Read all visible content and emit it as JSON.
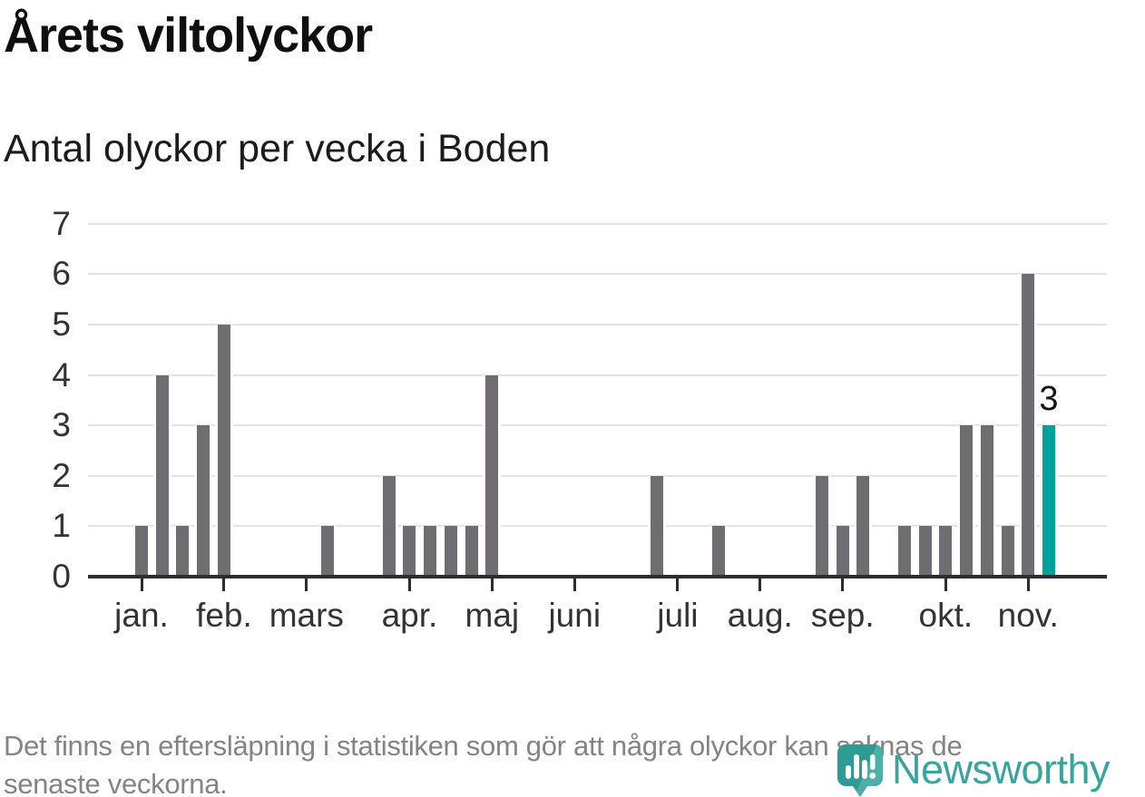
{
  "title": "Årets viltolyckor",
  "subtitle": "Antal olyckor per vecka i Boden",
  "footer": {
    "lines": [
      "Det finns en eftersläpning i statistiken som gör att några olyckor kan saknas de",
      "senaste veckorna."
    ]
  },
  "logo": {
    "wordmark": "Newsworthy"
  },
  "colors": {
    "bar": "#6f6d72",
    "highlight": "#00a39c",
    "axis": "#2d2d2d",
    "grid": "#e3e3e3",
    "tick_label": "#333333",
    "title": "#0f0f0f",
    "subtitle": "#1c1c1c",
    "footer_text": "#83838b",
    "logo_icon_dark": "#2e9b95",
    "logo_icon_light": "#4cafa8",
    "logo_wordmark": "#38a49e"
  },
  "chart_data": {
    "type": "bar",
    "title": "Årets viltolyckor",
    "subtitle": "Antal olyckor per vecka i Boden",
    "xlabel": "",
    "ylabel": "",
    "ylim": [
      0,
      7
    ],
    "yticks": [
      0,
      1,
      2,
      3,
      4,
      5,
      6,
      7
    ],
    "grid": true,
    "legend": "none",
    "x_unit": "week of year (0 = first week shown, one bar per week)",
    "month_ticks": [
      {
        "label": "jan.",
        "week": 0
      },
      {
        "label": "feb.",
        "week": 4
      },
      {
        "label": "mars",
        "week": 8
      },
      {
        "label": "apr.",
        "week": 13
      },
      {
        "label": "maj",
        "week": 17
      },
      {
        "label": "juni",
        "week": 21
      },
      {
        "label": "juli",
        "week": 26
      },
      {
        "label": "aug.",
        "week": 30
      },
      {
        "label": "sep.",
        "week": 34
      },
      {
        "label": "okt.",
        "week": 39
      },
      {
        "label": "nov.",
        "week": 43
      }
    ],
    "bars": [
      {
        "week": 0,
        "value": 1
      },
      {
        "week": 1,
        "value": 4
      },
      {
        "week": 2,
        "value": 1
      },
      {
        "week": 3,
        "value": 3
      },
      {
        "week": 4,
        "value": 5
      },
      {
        "week": 9,
        "value": 1
      },
      {
        "week": 12,
        "value": 2
      },
      {
        "week": 13,
        "value": 1
      },
      {
        "week": 14,
        "value": 1
      },
      {
        "week": 15,
        "value": 1
      },
      {
        "week": 16,
        "value": 1
      },
      {
        "week": 17,
        "value": 4
      },
      {
        "week": 25,
        "value": 2
      },
      {
        "week": 28,
        "value": 1
      },
      {
        "week": 33,
        "value": 2
      },
      {
        "week": 34,
        "value": 1
      },
      {
        "week": 35,
        "value": 2
      },
      {
        "week": 37,
        "value": 1
      },
      {
        "week": 38,
        "value": 1
      },
      {
        "week": 39,
        "value": 1
      },
      {
        "week": 40,
        "value": 3
      },
      {
        "week": 41,
        "value": 3
      },
      {
        "week": 42,
        "value": 1
      },
      {
        "week": 43,
        "value": 6
      },
      {
        "week": 44,
        "value": 3,
        "highlight": true,
        "label": "3"
      }
    ]
  }
}
